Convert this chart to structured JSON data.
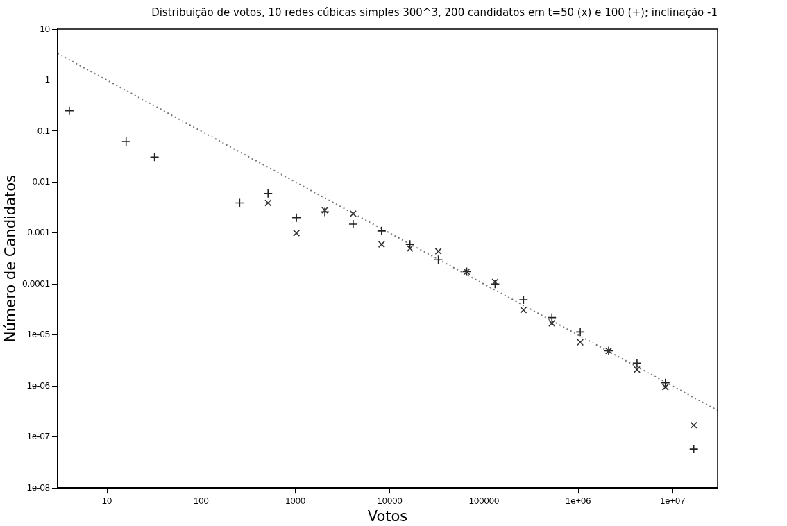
{
  "chart_data": {
    "type": "scatter",
    "title": "Distribuição de votos, 10 redes cúbicas simples 300^3, 200 candidatos em t=50 (x) e 100 (+); inclinação -1",
    "xlabel": "Votos",
    "ylabel": "Número de Candidatos",
    "log": "xy",
    "grid": false,
    "legend": false,
    "xlim": [
      3,
      30000000
    ],
    "ylim": [
      1e-08,
      10
    ],
    "xticks": [
      10,
      100,
      1000,
      10000,
      100000,
      {
        "value": 1000000,
        "label": "1e+06"
      },
      {
        "value": 10000000,
        "label": "1e+07"
      }
    ],
    "yticks": [
      {
        "value": 1e-08,
        "label": "1e-08"
      },
      {
        "value": 1e-07,
        "label": "1e-07"
      },
      {
        "value": 1e-06,
        "label": "1e-06"
      },
      {
        "value": 1e-05,
        "label": "1e-05"
      },
      0.0001,
      0.001,
      0.01,
      0.1,
      1,
      10
    ],
    "series": [
      {
        "marker": "x",
        "color": "#333333",
        "x": [
          512,
          1024,
          2048,
          4096,
          8192,
          16384,
          32768,
          65536,
          131072,
          262144,
          524288,
          1048576,
          2097152,
          4194304,
          8388608,
          16777216
        ],
        "values": [
          0.0039,
          0.001,
          0.0028,
          0.0024,
          0.0006,
          0.0005,
          0.00044,
          0.000175,
          0.00011,
          3.1e-05,
          1.7e-05,
          7.2e-06,
          4.9e-06,
          2.1e-06,
          9.5e-07,
          1.7e-07
        ]
      },
      {
        "marker": "cross",
        "color": "#222222",
        "x": [
          4,
          16,
          32,
          256,
          512,
          1024,
          2048,
          4096,
          8192,
          16384,
          32768,
          65536,
          131072,
          262144,
          524288,
          1048576,
          2097152,
          4194304,
          8388608,
          16777216
        ],
        "values": [
          0.25,
          0.0625,
          0.031,
          0.0039,
          0.006,
          0.002,
          0.0026,
          0.0015,
          0.0011,
          0.0006,
          0.0003,
          0.000175,
          0.0001,
          4.9e-05,
          2.2e-05,
          1.15e-05,
          4.9e-06,
          2.8e-06,
          1.15e-06,
          5.8e-08
        ]
      },
      {
        "type": "line",
        "marker": "none",
        "line_style": "dotted",
        "color": "#777777",
        "x": [
          3,
          30000000
        ],
        "values": [
          3.33,
          3.33e-07
        ]
      }
    ]
  }
}
